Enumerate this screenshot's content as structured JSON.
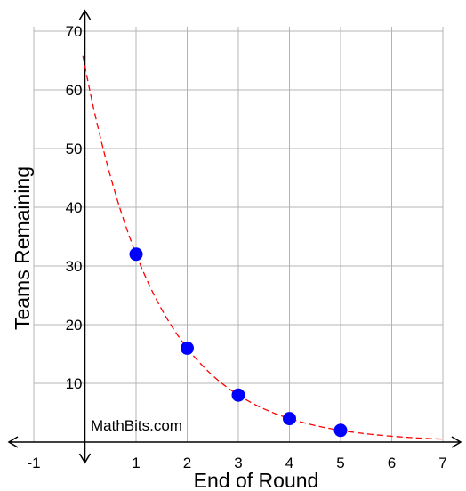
{
  "chart_data": {
    "type": "scatter",
    "xlabel": "End of Round",
    "ylabel": "Teams Remaining",
    "xlim": [
      -1,
      7
    ],
    "ylim": [
      0,
      70
    ],
    "x_ticks": [
      -1,
      1,
      2,
      3,
      4,
      5,
      6,
      7
    ],
    "y_ticks": [
      10,
      20,
      30,
      40,
      50,
      60,
      70
    ],
    "grid": true,
    "points": [
      {
        "x": 1,
        "y": 32
      },
      {
        "x": 2,
        "y": 16
      },
      {
        "x": 3,
        "y": 8
      },
      {
        "x": 4,
        "y": 4
      },
      {
        "x": 5,
        "y": 2
      }
    ],
    "curve": {
      "style": "dashed",
      "formula": "y = 64 * 0.5^x",
      "a": 64,
      "b": 0.5,
      "color": "#ff0000"
    },
    "point_color": "#0000ff",
    "annotation": "MathBits.com"
  }
}
